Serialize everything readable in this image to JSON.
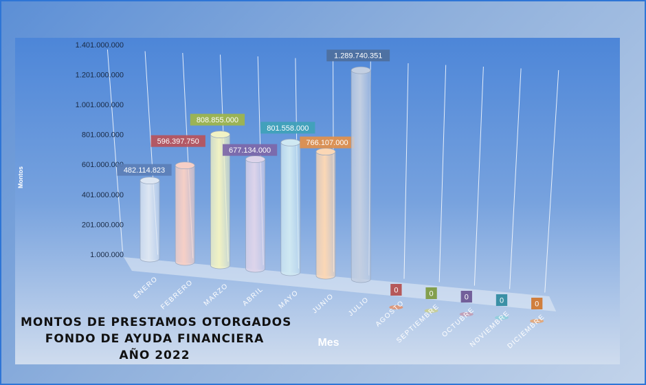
{
  "chart_data": {
    "type": "bar",
    "title_lines": [
      "MONTOS  DE  PRESTAMOS  OTORGADOS",
      "FONDO  DE  AYUDA  FINANCIERA",
      "AÑO   2022"
    ],
    "xlabel": "Mes",
    "ylabel": "Montos",
    "ylim": [
      1000000,
      1401000000
    ],
    "yticks": [
      "1.000.000",
      "201.000.000",
      "401.000.000",
      "601.000.000",
      "801.000.000",
      "1.001.000.000",
      "1.201.000.000",
      "1.401.000.000"
    ],
    "categories": [
      "ENERO",
      "FEBRERO",
      "MARZO",
      "ABRIL",
      "MAYO",
      "JUNIO",
      "JULIO",
      "AGOSTO",
      "SEPTIEMBRE",
      "OCTUBRE",
      "NOVIEMBRE",
      "DICIEMBRE"
    ],
    "values": [
      482114823,
      596397750,
      808855000,
      677134000,
      801558000,
      766107000,
      1289740351,
      0,
      0,
      0,
      0,
      0
    ],
    "value_labels": [
      "482.114.823",
      "596.397.750",
      "808.855.000",
      "677.134.000",
      "801.558.000",
      "766.107.000",
      "1.289.740.351",
      "0",
      "0",
      "0",
      "0",
      "0"
    ],
    "bar_colors": [
      "#dde6f2",
      "#f6cfc6",
      "#f1f2c4",
      "#ddd4ea",
      "#cfe8f2",
      "#fbd7b5",
      "#c3cfe2",
      "#e4906a",
      "#c9cf8f",
      "#c39ab0",
      "#8ecfdc",
      "#e8a36f"
    ],
    "label_colors": [
      "#5b7fb6",
      "#b8525a",
      "#9fb54a",
      "#7d67a8",
      "#3fa2b8",
      "#e3904a",
      "#4e6f9d",
      "#b34d4d",
      "#7d9a3f",
      "#6a5592",
      "#2f8aa0",
      "#d0762e"
    ],
    "grid": true
  }
}
